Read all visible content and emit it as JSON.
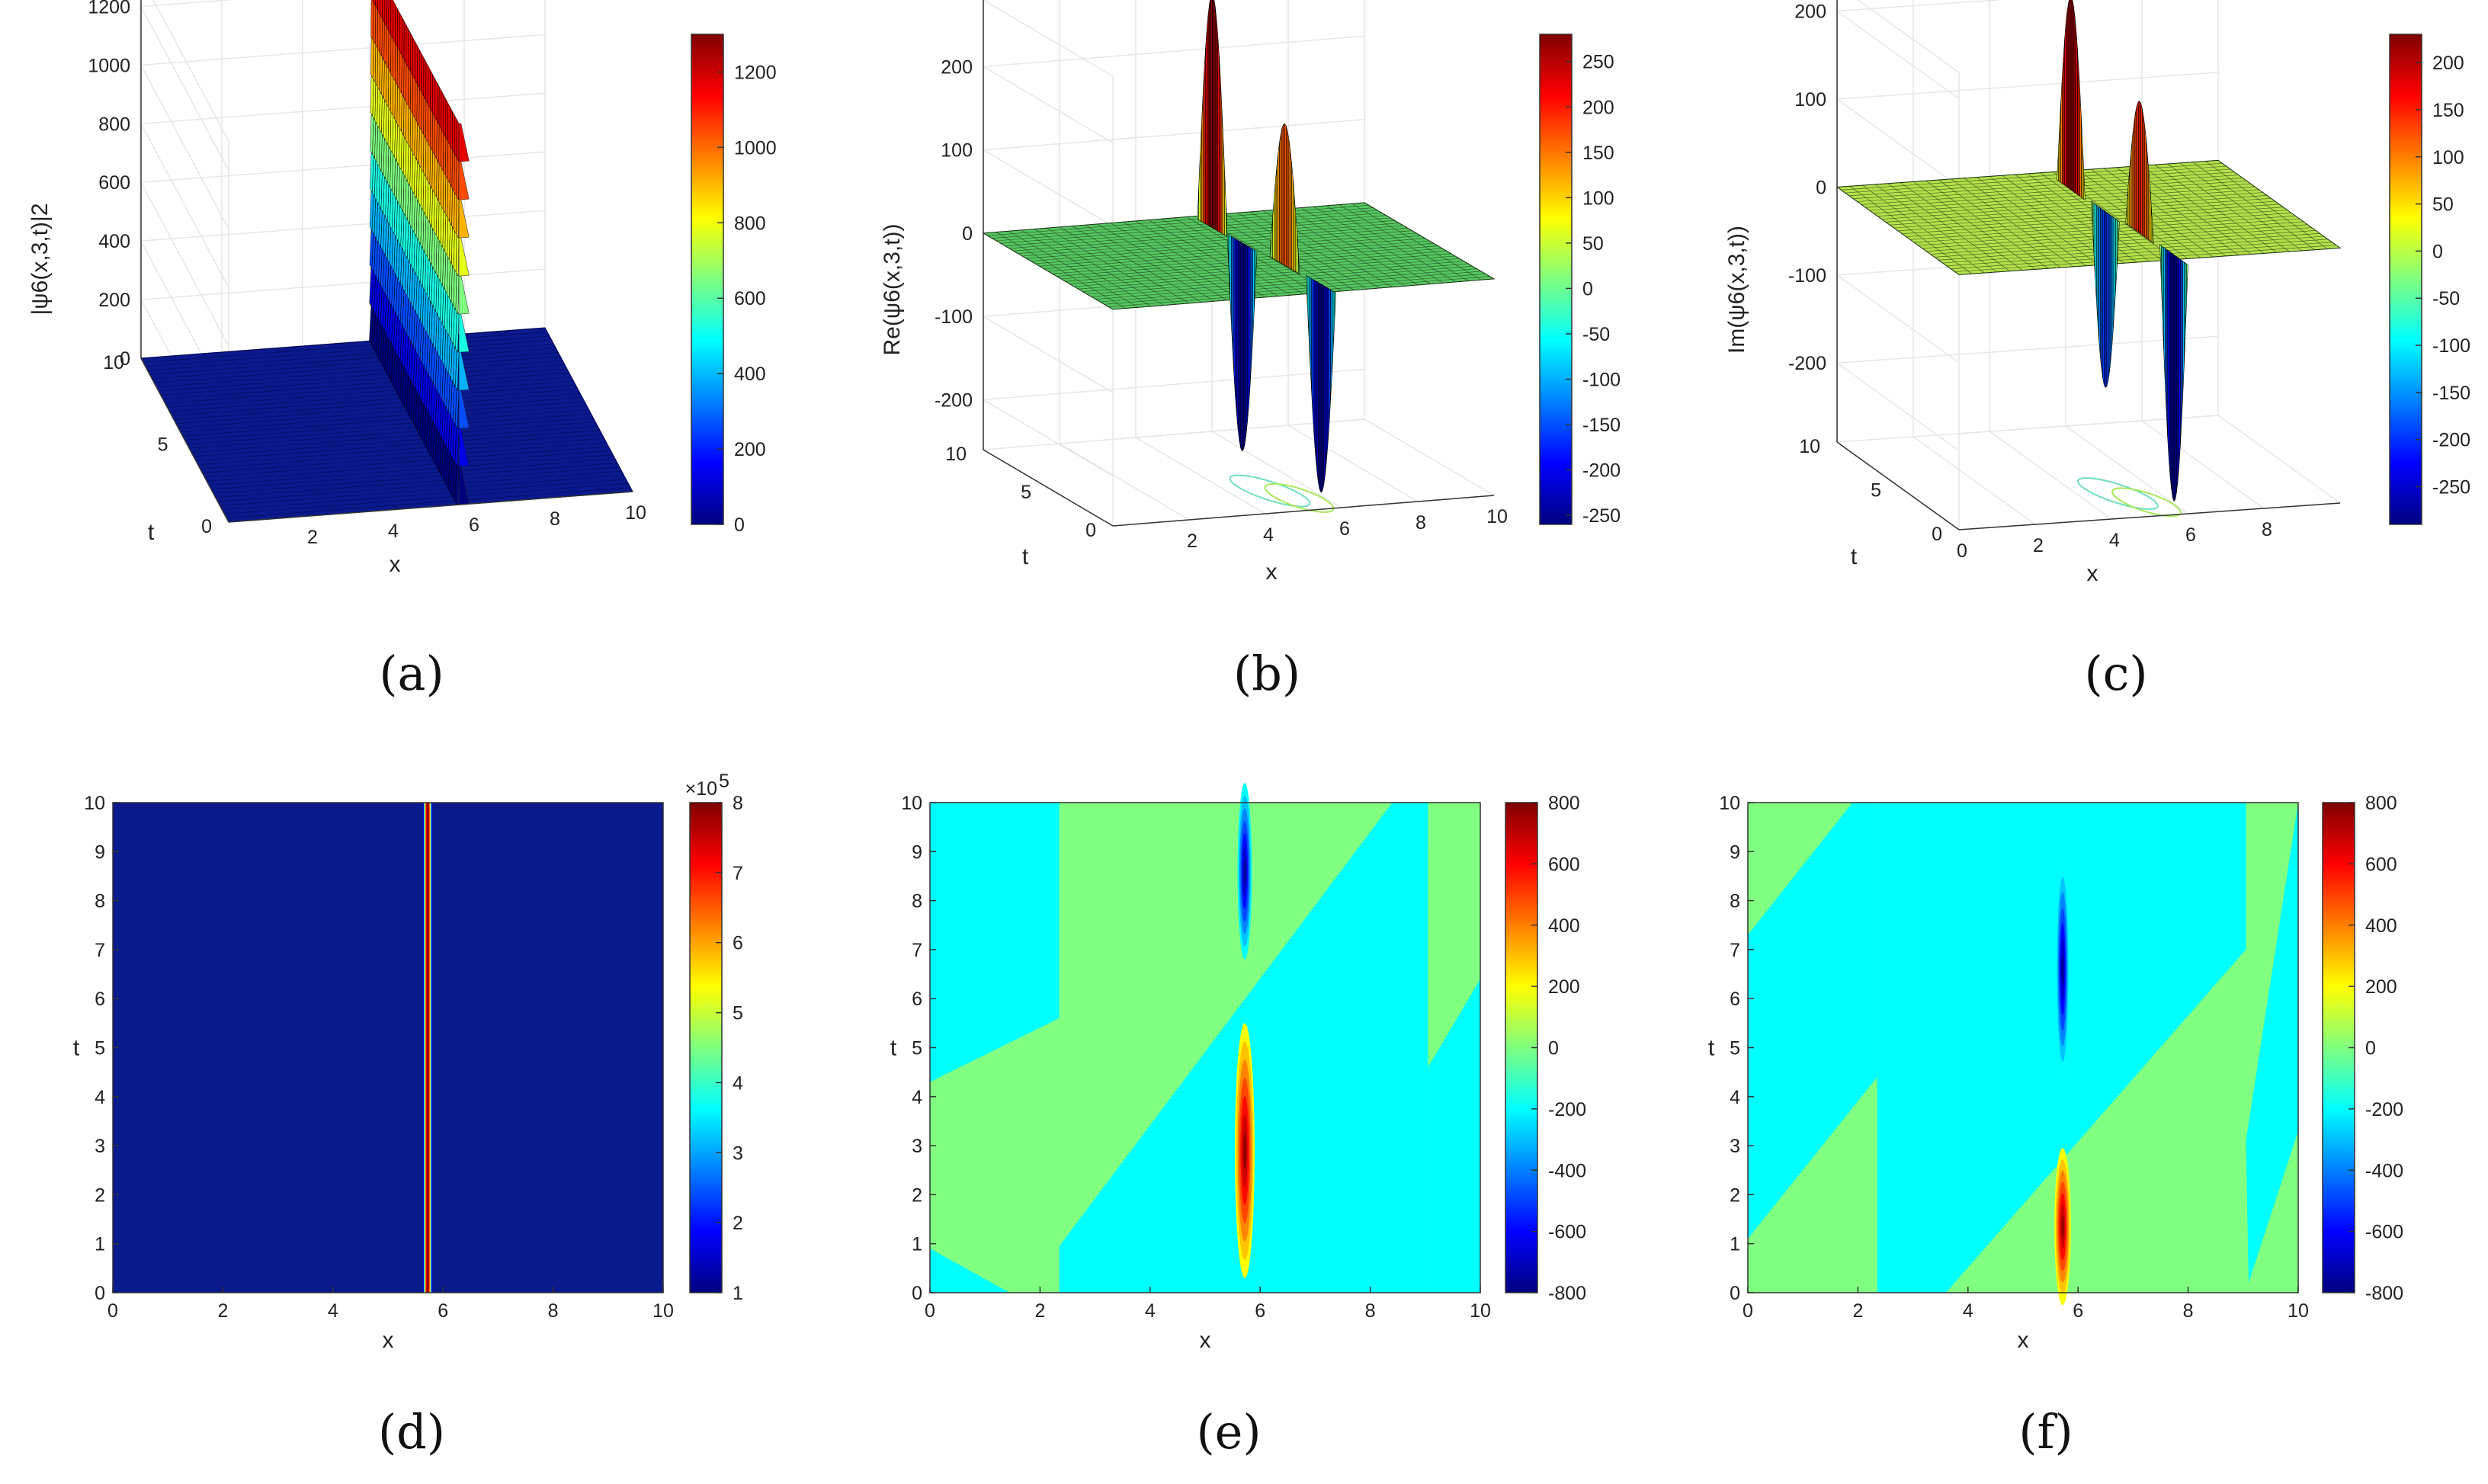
{
  "colors": {
    "jet": [
      "#00007f",
      "#0000ff",
      "#007fff",
      "#00ffff",
      "#7fff7f",
      "#ffff00",
      "#ff7f00",
      "#ff0000",
      "#7f0000"
    ],
    "low_band": "#00ffff",
    "high_band": "#80ff80",
    "floor": "#0a1a8c",
    "plane_b": "#55c760",
    "plane_c": "#b4e04a"
  },
  "chart_data": [
    {
      "id": "a",
      "type": "surface3d",
      "caption": "(a)",
      "zlabel": "|ψ6(x,3,t)|2",
      "xlabel": "x",
      "ylabel": "t",
      "xlim": [
        0,
        10
      ],
      "tlim": [
        0,
        10
      ],
      "zlim": [
        0,
        1300
      ],
      "xticks": [
        "2",
        "4",
        "6",
        "8",
        "10"
      ],
      "tticks": [
        "0",
        "5",
        "10"
      ],
      "zticks": [
        "0",
        "200",
        "400",
        "600",
        "800",
        "1000",
        "1200"
      ],
      "colorbar": {
        "ticks": [
          "0",
          "200",
          "400",
          "600",
          "800",
          "1000",
          "1200"
        ],
        "range": [
          0,
          1300
        ]
      },
      "peak": {
        "x": 5.7,
        "zmax": 1300
      }
    },
    {
      "id": "b",
      "type": "surface3d",
      "caption": "(b)",
      "zlabel": "Re(ψ6(x,3,t))",
      "xlabel": "x",
      "ylabel": "t",
      "xlim": [
        0,
        10
      ],
      "tlim": [
        0,
        10
      ],
      "zlim": [
        -260,
        280
      ],
      "xticks": [
        "2",
        "4",
        "6",
        "8",
        "10"
      ],
      "tticks": [
        "0",
        "5",
        "10"
      ],
      "zticks": [
        "-200",
        "-100",
        "0",
        "100",
        "200"
      ],
      "colorbar": {
        "ticks": [
          "-250",
          "-200",
          "-150",
          "-100",
          "-50",
          "0",
          "50",
          "100",
          "150",
          "200",
          "250"
        ],
        "range": [
          -260,
          280
        ]
      },
      "lobes": [
        {
          "x": 5.5,
          "t": 8.5,
          "z": 280
        },
        {
          "x": 5.6,
          "t": 6.5,
          "z": -250
        },
        {
          "x": 5.7,
          "t": 3.5,
          "z": 170
        },
        {
          "x": 5.8,
          "t": 1.0,
          "z": -250
        }
      ]
    },
    {
      "id": "c",
      "type": "surface3d",
      "caption": "(c)",
      "zlabel": "Im(ψ6(x,3,t))",
      "xlabel": "x",
      "ylabel": "t",
      "xlim": [
        0,
        10
      ],
      "tlim": [
        0,
        10
      ],
      "zlim": [
        -290,
        230
      ],
      "xticks": [
        "0",
        "2",
        "4",
        "6",
        "8"
      ],
      "tticks": [
        "0",
        "5",
        "10"
      ],
      "zticks": [
        "-200",
        "-100",
        "0",
        "100",
        "200"
      ],
      "colorbar": {
        "ticks": [
          "-250",
          "-200",
          "-150",
          "-100",
          "-50",
          "0",
          "50",
          "100",
          "150",
          "200"
        ],
        "range": [
          -290,
          230
        ]
      },
      "lobes": [
        {
          "x": 5.5,
          "t": 8.0,
          "z": 220
        },
        {
          "x": 5.6,
          "t": 5.5,
          "z": -200
        },
        {
          "x": 5.7,
          "t": 3.0,
          "z": 150
        },
        {
          "x": 5.8,
          "t": 0.5,
          "z": -280
        }
      ]
    },
    {
      "id": "d",
      "type": "heatmap",
      "caption": "(d)",
      "xlabel": "x",
      "ylabel": "t",
      "xlim": [
        0,
        10
      ],
      "ylim": [
        0,
        10
      ],
      "xticks": [
        "0",
        "2",
        "4",
        "6",
        "8",
        "10"
      ],
      "yticks": [
        "0",
        "1",
        "2",
        "3",
        "4",
        "5",
        "6",
        "7",
        "8",
        "9",
        "10"
      ],
      "colorbar": {
        "ticks": [
          "1",
          "2",
          "3",
          "4",
          "5",
          "6",
          "7",
          "8"
        ],
        "range": [
          1,
          8
        ],
        "exponent": "×10",
        "exponent_power": "5"
      },
      "band": {
        "x_center": 5.72,
        "half_width": 0.08
      }
    },
    {
      "id": "e",
      "type": "heatmap",
      "caption": "(e)",
      "xlabel": "x",
      "ylabel": "t",
      "xlim": [
        0,
        10
      ],
      "ylim": [
        0,
        10
      ],
      "xticks": [
        "0",
        "2",
        "4",
        "6",
        "8",
        "10"
      ],
      "yticks": [
        "0",
        "1",
        "2",
        "3",
        "4",
        "5",
        "6",
        "7",
        "8",
        "9",
        "10"
      ],
      "colorbar": {
        "ticks": [
          "-800",
          "-600",
          "-400",
          "-200",
          "0",
          "200",
          "400",
          "600",
          "800"
        ],
        "range": [
          -800,
          800
        ]
      },
      "regions_low": [
        [
          [
            0,
            10
          ],
          [
            2.35,
            10
          ],
          [
            2.35,
            5.6
          ],
          [
            0,
            4.3
          ]
        ],
        [
          [
            0,
            0
          ],
          [
            1.45,
            0
          ],
          [
            0,
            0.9
          ]
        ],
        [
          [
            2.35,
            0
          ],
          [
            9.05,
            0
          ],
          [
            9.05,
            10
          ],
          [
            8.4,
            10
          ],
          [
            2.35,
            0.95
          ]
        ],
        [
          [
            9.05,
            4.6
          ],
          [
            10,
            6.4
          ],
          [
            10,
            0
          ],
          [
            9.05,
            0
          ]
        ]
      ],
      "blobs": [
        {
          "x": 5.72,
          "t": 8.6,
          "w": 0.13,
          "h": 1.8,
          "val": -780
        },
        {
          "x": 5.72,
          "t": 2.9,
          "w": 0.18,
          "h": 2.6,
          "val": 780
        }
      ]
    },
    {
      "id": "f",
      "type": "heatmap",
      "caption": "(f)",
      "xlabel": "x",
      "ylabel": "t",
      "xlim": [
        0,
        10
      ],
      "ylim": [
        0,
        10
      ],
      "xticks": [
        "0",
        "2",
        "4",
        "6",
        "8",
        "10"
      ],
      "yticks": [
        "0",
        "1",
        "2",
        "3",
        "4",
        "5",
        "6",
        "7",
        "8",
        "9",
        "10"
      ],
      "colorbar": {
        "ticks": [
          "-800",
          "-600",
          "-400",
          "-200",
          "0",
          "200",
          "400",
          "600",
          "800"
        ],
        "range": [
          -800,
          800
        ]
      },
      "regions_low": [
        [
          [
            0,
            1.1
          ],
          [
            0,
            7.3
          ],
          [
            1.9,
            10
          ],
          [
            2.35,
            10
          ],
          [
            2.35,
            4.4
          ]
        ],
        [
          [
            2.35,
            0
          ],
          [
            3.6,
            0
          ],
          [
            9.05,
            7.0
          ],
          [
            9.05,
            10
          ],
          [
            2.35,
            10
          ]
        ],
        [
          [
            6.5,
            10
          ],
          [
            9.05,
            10
          ],
          [
            9.05,
            7.2
          ]
        ],
        [
          [
            9.05,
            3.1
          ],
          [
            10,
            10
          ],
          [
            10,
            3.3
          ],
          [
            9.1,
            0.2
          ]
        ]
      ],
      "blobs": [
        {
          "x": 5.72,
          "t": 6.6,
          "w": 0.12,
          "h": 2.2,
          "val": -780
        },
        {
          "x": 5.72,
          "t": 1.35,
          "w": 0.15,
          "h": 1.6,
          "val": 780
        }
      ]
    }
  ]
}
